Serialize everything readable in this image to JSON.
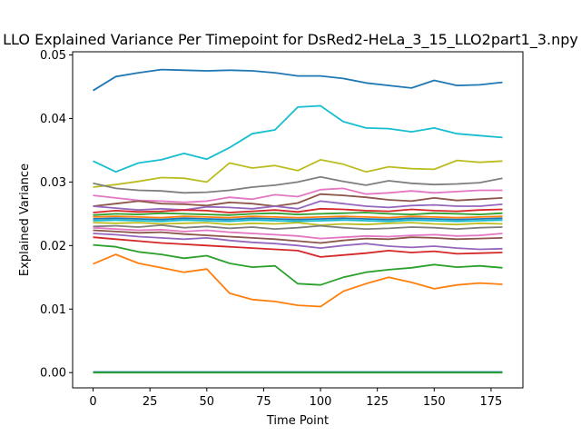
{
  "chart_data": {
    "type": "line",
    "title": "LLO Explained Variance Per Timepoint for DsRed2-HeLa_3_15_LLO2part1_3.npy",
    "xlabel": "Time Point",
    "ylabel": "Explained Variance",
    "xlim": [
      -9,
      189
    ],
    "ylim": [
      -0.0024,
      0.0505
    ],
    "xticks": [
      0,
      25,
      50,
      75,
      100,
      125,
      150,
      175
    ],
    "xtick_labels": [
      "0",
      "25",
      "50",
      "75",
      "100",
      "125",
      "150",
      "175"
    ],
    "yticks": [
      0.0,
      0.01,
      0.02,
      0.03,
      0.04,
      0.05
    ],
    "ytick_labels": [
      "0.00",
      "0.01",
      "0.02",
      "0.03",
      "0.04",
      "0.05"
    ],
    "grid": false,
    "legend": "none",
    "x": [
      0,
      10,
      20,
      30,
      40,
      50,
      60,
      70,
      80,
      90,
      100,
      110,
      120,
      130,
      140,
      150,
      160,
      170,
      180
    ],
    "series": [
      {
        "color": "#1f77b4",
        "values": [
          0.0444,
          0.0466,
          0.0472,
          0.0477,
          0.0476,
          0.0475,
          0.0476,
          0.0475,
          0.0472,
          0.0467,
          0.0467,
          0.0463,
          0.0456,
          0.0452,
          0.0448,
          0.046,
          0.0452,
          0.0453,
          0.0457
        ]
      },
      {
        "color": "#17becf",
        "values": [
          0.0333,
          0.0316,
          0.033,
          0.0335,
          0.0345,
          0.0336,
          0.0354,
          0.0376,
          0.0382,
          0.0418,
          0.042,
          0.0395,
          0.0385,
          0.0384,
          0.0379,
          0.0385,
          0.0376,
          0.0373,
          0.037
        ]
      },
      {
        "color": "#bcbd22",
        "values": [
          0.0292,
          0.0296,
          0.0301,
          0.0307,
          0.0306,
          0.03,
          0.033,
          0.0322,
          0.0326,
          0.0318,
          0.0335,
          0.0328,
          0.0316,
          0.0324,
          0.0321,
          0.032,
          0.0334,
          0.0331,
          0.0333
        ]
      },
      {
        "color": "#7f7f7f",
        "values": [
          0.0298,
          0.029,
          0.0287,
          0.0286,
          0.0283,
          0.0284,
          0.0287,
          0.0292,
          0.0295,
          0.03,
          0.0308,
          0.0301,
          0.0295,
          0.0302,
          0.0298,
          0.0296,
          0.0297,
          0.0299,
          0.0306
        ]
      },
      {
        "color": "#e377c2",
        "values": [
          0.0279,
          0.0275,
          0.0271,
          0.027,
          0.0268,
          0.027,
          0.0276,
          0.0273,
          0.028,
          0.0277,
          0.0288,
          0.029,
          0.0281,
          0.0283,
          0.0286,
          0.0283,
          0.0285,
          0.0287,
          0.0287
        ]
      },
      {
        "color": "#8c564b",
        "values": [
          0.0262,
          0.0266,
          0.027,
          0.0266,
          0.0265,
          0.0263,
          0.0268,
          0.0266,
          0.0262,
          0.0267,
          0.0281,
          0.0279,
          0.0276,
          0.0272,
          0.027,
          0.0275,
          0.0271,
          0.0273,
          0.0275
        ]
      },
      {
        "color": "#9467bd",
        "values": [
          0.0262,
          0.0259,
          0.0256,
          0.0258,
          0.0256,
          0.0261,
          0.026,
          0.0258,
          0.0262,
          0.0258,
          0.027,
          0.0266,
          0.0262,
          0.026,
          0.0263,
          0.0264,
          0.0262,
          0.0262,
          0.0265
        ]
      },
      {
        "color": "#d62728",
        "values": [
          0.0252,
          0.0255,
          0.0253,
          0.0254,
          0.0256,
          0.0255,
          0.0252,
          0.0254,
          0.0256,
          0.0253,
          0.0258,
          0.0257,
          0.0255,
          0.0254,
          0.0257,
          0.0255,
          0.0254,
          0.0256,
          0.0257
        ]
      },
      {
        "color": "#2ca02c",
        "values": [
          0.0248,
          0.025,
          0.0249,
          0.0251,
          0.025,
          0.0249,
          0.0248,
          0.025,
          0.0251,
          0.0249,
          0.025,
          0.0251,
          0.0252,
          0.025,
          0.0249,
          0.0251,
          0.025,
          0.0249,
          0.0251
        ]
      },
      {
        "color": "#ff7f0e",
        "values": [
          0.0245,
          0.0246,
          0.0245,
          0.0244,
          0.0246,
          0.0245,
          0.0244,
          0.0246,
          0.0245,
          0.0244,
          0.0245,
          0.0246,
          0.0245,
          0.0244,
          0.0246,
          0.0245,
          0.0244,
          0.0245,
          0.0246
        ]
      },
      {
        "color": "#1f77b4",
        "values": [
          0.0242,
          0.0243,
          0.0242,
          0.0241,
          0.0243,
          0.0242,
          0.0241,
          0.0243,
          0.0242,
          0.0241,
          0.0242,
          0.0243,
          0.0242,
          0.0241,
          0.0243,
          0.0242,
          0.0241,
          0.0242,
          0.0243
        ]
      },
      {
        "color": "#17becf",
        "values": [
          0.0239,
          0.024,
          0.0239,
          0.0238,
          0.024,
          0.0239,
          0.0238,
          0.024,
          0.0239,
          0.0238,
          0.0239,
          0.024,
          0.0239,
          0.0238,
          0.024,
          0.0239,
          0.0238,
          0.0239,
          0.024
        ]
      },
      {
        "color": "#bcbd22",
        "values": [
          0.0236,
          0.0235,
          0.0236,
          0.0234,
          0.0235,
          0.0236,
          0.0233,
          0.0235,
          0.0234,
          0.0236,
          0.0232,
          0.0234,
          0.0233,
          0.0235,
          0.0236,
          0.0234,
          0.0233,
          0.0235,
          0.0234
        ]
      },
      {
        "color": "#7f7f7f",
        "values": [
          0.023,
          0.0231,
          0.0229,
          0.0232,
          0.0228,
          0.023,
          0.0227,
          0.0229,
          0.0226,
          0.0228,
          0.0231,
          0.0228,
          0.0226,
          0.0227,
          0.0229,
          0.0228,
          0.0226,
          0.0228,
          0.0229
        ]
      },
      {
        "color": "#e377c2",
        "values": [
          0.0228,
          0.0226,
          0.0224,
          0.0225,
          0.0222,
          0.0224,
          0.0221,
          0.0219,
          0.0217,
          0.0215,
          0.0211,
          0.0213,
          0.0215,
          0.0214,
          0.0216,
          0.0217,
          0.0215,
          0.0216,
          0.0219
        ]
      },
      {
        "color": "#8c564b",
        "values": [
          0.0224,
          0.0222,
          0.022,
          0.0221,
          0.0218,
          0.0216,
          0.0214,
          0.0212,
          0.021,
          0.0207,
          0.0204,
          0.0208,
          0.0211,
          0.021,
          0.0213,
          0.0212,
          0.021,
          0.0211,
          0.0212
        ]
      },
      {
        "color": "#9467bd",
        "values": [
          0.0219,
          0.0217,
          0.0214,
          0.0212,
          0.021,
          0.0212,
          0.0208,
          0.0205,
          0.0203,
          0.02,
          0.0196,
          0.02,
          0.0203,
          0.0199,
          0.0197,
          0.0199,
          0.0196,
          0.0194,
          0.0195
        ]
      },
      {
        "color": "#d62728",
        "values": [
          0.0213,
          0.021,
          0.0207,
          0.0204,
          0.0202,
          0.02,
          0.0198,
          0.0196,
          0.0194,
          0.0192,
          0.0182,
          0.0185,
          0.0188,
          0.0192,
          0.0189,
          0.0191,
          0.0187,
          0.0188,
          0.0189
        ]
      },
      {
        "color": "#2ca02c",
        "values": [
          0.0201,
          0.0198,
          0.019,
          0.0186,
          0.018,
          0.0184,
          0.0172,
          0.0166,
          0.0168,
          0.014,
          0.0138,
          0.015,
          0.0158,
          0.0162,
          0.0165,
          0.017,
          0.0166,
          0.0168,
          0.0165
        ]
      },
      {
        "color": "#ff7f0e",
        "values": [
          0.0171,
          0.0186,
          0.0172,
          0.0165,
          0.0158,
          0.0163,
          0.0125,
          0.0115,
          0.0112,
          0.0106,
          0.0104,
          0.0128,
          0.014,
          0.015,
          0.0142,
          0.0132,
          0.0138,
          0.0141,
          0.0139
        ]
      },
      {
        "color": "#1f77b4",
        "values": [
          0.0001,
          0.0001,
          0.0001,
          0.0001,
          0.0001,
          0.0001,
          0.0001,
          0.0001,
          0.0001,
          0.0001,
          0.0001,
          0.0001,
          0.0001,
          0.0001,
          0.0001,
          0.0001,
          0.0001,
          0.0001,
          0.0001
        ]
      },
      {
        "color": "#2ca02c",
        "values": [
          0.0,
          0.0,
          0.0,
          0.0,
          0.0,
          0.0,
          0.0,
          0.0,
          0.0,
          0.0,
          0.0,
          0.0,
          0.0,
          0.0,
          0.0,
          0.0,
          0.0,
          0.0,
          0.0
        ]
      }
    ]
  }
}
